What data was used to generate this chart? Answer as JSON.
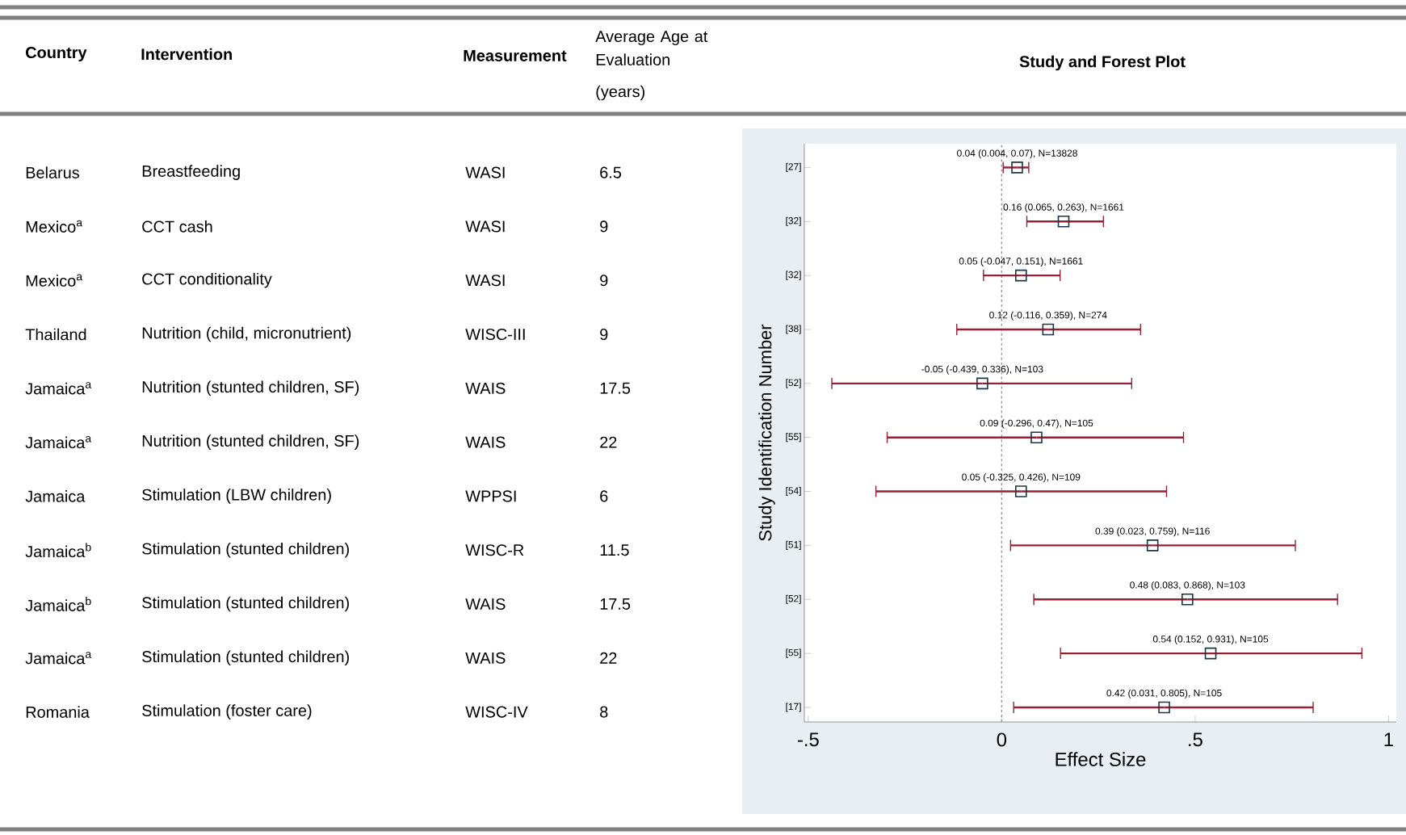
{
  "chart_data": [
    {
      "type": "other",
      "annotations": [
        "Country",
        "Intervention",
        "Measurement",
        "Average Age at Evaluation",
        "(years)",
        "Belarus",
        "Breastfeeding",
        "WASI",
        "6.5",
        "Mexico$^{a}$",
        "CCT cash",
        "WASI",
        "9",
        "Mexico$^{a}$",
        "CCT conditionality",
        "WASI",
        "9",
        "Thailand",
        "Nutrition (child, micronutrient)",
        "WISC-III",
        "9",
        "Jamaica$^{a}$",
        "Nutrition (stunted children, SF)",
        "WAIS",
        "17.5",
        "Jamaica$^{a}$",
        "Nutrition (stunted children, SF)",
        "WAIS",
        "22",
        "Jamaica",
        "Stimulation (LBW children)",
        "WPPSI",
        "6",
        "Jamaica$^{b}$",
        "Stimulation (stunted children)",
        "WISC-R",
        "11.5",
        "Jamaica$^{b}$",
        "Stimulation (stunted children)",
        "WAIS",
        "17.5",
        "Jamaica$^{a}$",
        "Stimulation (stunted children)",
        "WAIS",
        "22",
        "Romania",
        "Stimulation (foster care)",
        "WISC-IV",
        "8"
      ]
    },
    {
      "type": "scatter",
      "title": "Study and Forest Plot",
      "xlabel": "Effect Size",
      "ylabel": "Study Identification Number",
      "orientation": "horizontal",
      "categories": [
        "[27]",
        "[32]",
        "[32]",
        "[38]",
        "[52]",
        "[55]",
        "[54]",
        "[51]",
        "[52]",
        "[55]",
        "[17]"
      ],
      "values": [
        0.04,
        0.16,
        0.05,
        0.12,
        -0.05,
        0.09,
        0.05,
        0.39,
        0.48,
        0.54,
        0.42
      ],
      "errors": [
        [
          0.004,
          0.07
        ],
        [
          0.065,
          0.263
        ],
        [
          -0.047,
          0.151
        ],
        [
          -0.116,
          0.359
        ],
        [
          -0.439,
          0.336
        ],
        [
          -0.296,
          0.47
        ],
        [
          -0.325,
          0.426
        ],
        [
          0.023,
          0.759
        ],
        [
          0.083,
          0.868
        ],
        [
          0.152,
          0.931
        ],
        [
          0.031,
          0.805
        ]
      ],
      "value_labels": [
        "0.04 (0.004, 0.07), N=13828",
        "0.16 (0.065, 0.263), N=1661",
        "0.05 (-0.047, 0.151), N=1661",
        "0.12 (-0.116, 0.359), N=274",
        "-0.05 (-0.439, 0.336), N=103",
        "0.09 (-0.296, 0.47), N=105",
        "0.05 (-0.325, 0.426), N=109",
        "0.39 (0.023, 0.759), N=116",
        "0.48 (0.083, 0.868), N=103",
        "0.54 (0.152, 0.931), N=105",
        "0.42 (0.031, 0.805), N=105"
      ],
      "color": "#1c3444",
      "marker": "square",
      "xlim": [
        -0.51,
        1.02
      ],
      "xticks": [
        {
          "value": -0.5,
          "label": "-.5"
        },
        0,
        {
          "value": 0.5,
          "label": ".5"
        },
        1
      ],
      "ref_lines": [
        {
          "axis": "x",
          "value": 0,
          "color": "#8a8a8a",
          "line_style": "dashed"
        }
      ]
    }
  ]
}
